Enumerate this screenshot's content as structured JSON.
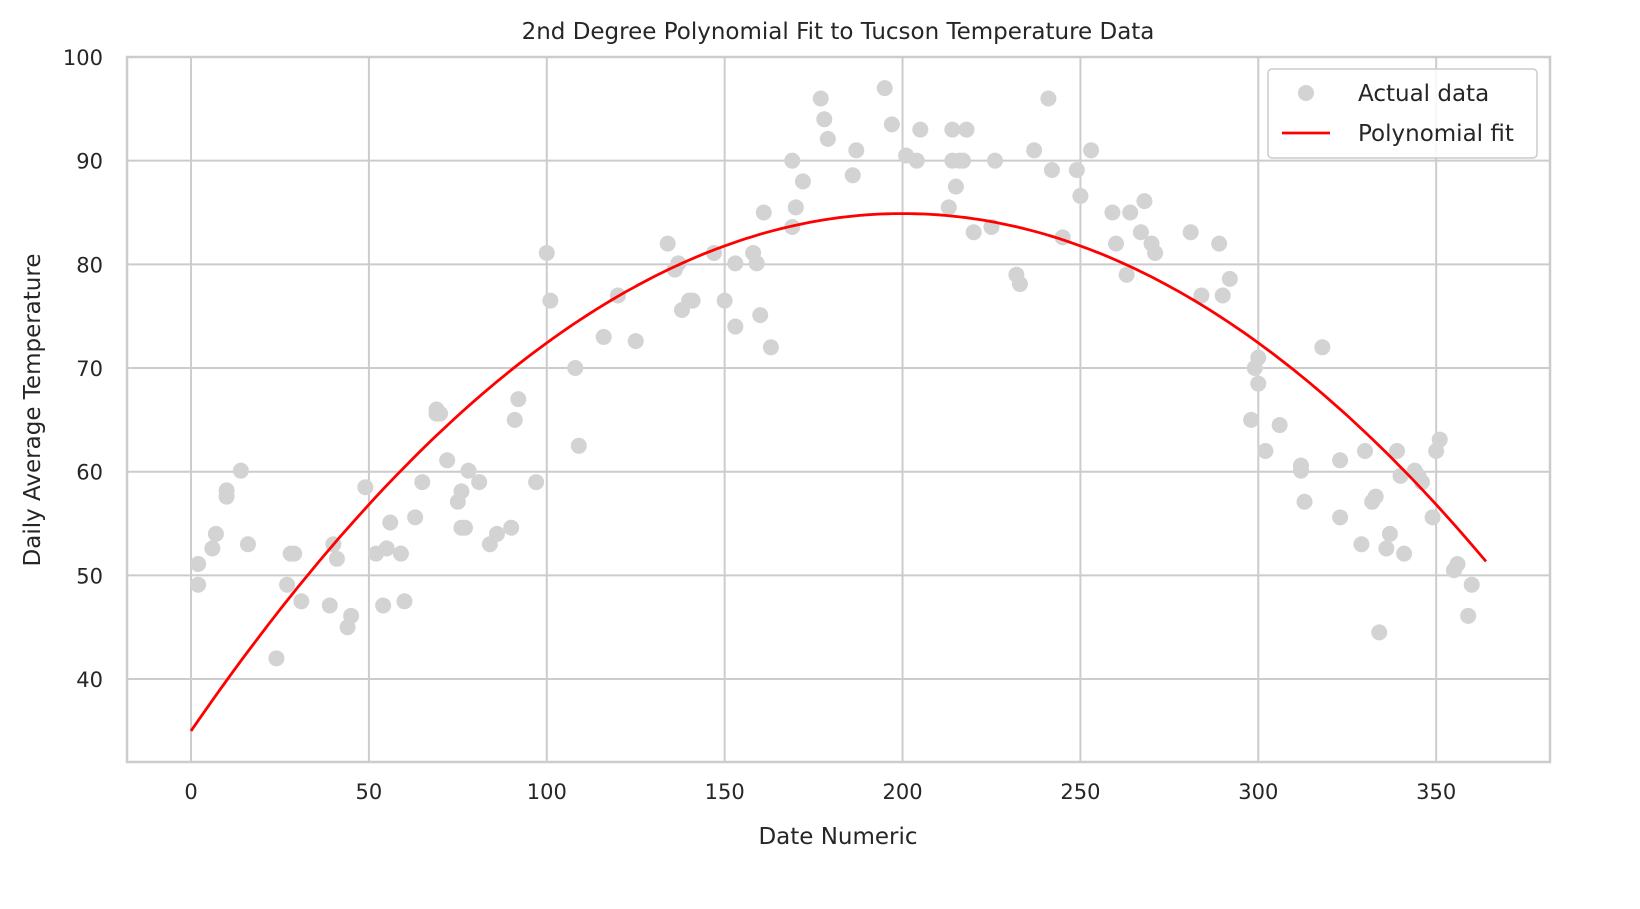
{
  "chart_data": {
    "type": "scatter",
    "title": "2nd Degree Polynomial Fit to Tucson Temperature Data",
    "xlabel": "Date Numeric",
    "ylabel": "Daily Average Temperature",
    "xlim": [
      -18,
      382
    ],
    "ylim": [
      32,
      100
    ],
    "xticks": [
      0,
      50,
      100,
      150,
      200,
      250,
      300,
      350
    ],
    "yticks": [
      40,
      50,
      60,
      70,
      80,
      90,
      100
    ],
    "grid": true,
    "legend": {
      "placement": "top-right",
      "entries": [
        "Actual data",
        "Polynomial fit"
      ]
    },
    "series": [
      {
        "name": "Actual data",
        "kind": "scatter",
        "color": "#d3d3d3",
        "points": [
          [
            2,
            51.1
          ],
          [
            2,
            49.1
          ],
          [
            6,
            52.6
          ],
          [
            7,
            54
          ],
          [
            10,
            58.2
          ],
          [
            10,
            57.6
          ],
          [
            14,
            60.1
          ],
          [
            16,
            53
          ],
          [
            24,
            42
          ],
          [
            27,
            49.1
          ],
          [
            28,
            52.1
          ],
          [
            29,
            52.1
          ],
          [
            31,
            47.5
          ],
          [
            39,
            47.1
          ],
          [
            40,
            53
          ],
          [
            41,
            51.6
          ],
          [
            44,
            45
          ],
          [
            45,
            46.1
          ],
          [
            49,
            58.5
          ],
          [
            52,
            52.1
          ],
          [
            54,
            47.1
          ],
          [
            55,
            52.6
          ],
          [
            56,
            55.1
          ],
          [
            59,
            52.1
          ],
          [
            60,
            47.5
          ],
          [
            63,
            55.6
          ],
          [
            65,
            59
          ],
          [
            69,
            66
          ],
          [
            69,
            65.6
          ],
          [
            70,
            65.6
          ],
          [
            72,
            61.1
          ],
          [
            75,
            57.1
          ],
          [
            76,
            58.1
          ],
          [
            76,
            54.6
          ],
          [
            77,
            54.6
          ],
          [
            78,
            60.1
          ],
          [
            81,
            59
          ],
          [
            84,
            53
          ],
          [
            86,
            54
          ],
          [
            90,
            54.6
          ],
          [
            91,
            65
          ],
          [
            92,
            67
          ],
          [
            97,
            59
          ],
          [
            100,
            81.1
          ],
          [
            101,
            76.5
          ],
          [
            108,
            70
          ],
          [
            109,
            62.5
          ],
          [
            116,
            73
          ],
          [
            120,
            77
          ],
          [
            125,
            72.6
          ],
          [
            134,
            82
          ],
          [
            136,
            79.5
          ],
          [
            137,
            80.1
          ],
          [
            138,
            75.6
          ],
          [
            140,
            76.5
          ],
          [
            141,
            76.5
          ],
          [
            147,
            81.1
          ],
          [
            150,
            76.5
          ],
          [
            153,
            74
          ],
          [
            153,
            80.1
          ],
          [
            158,
            81.1
          ],
          [
            159,
            80.1
          ],
          [
            160,
            75.1
          ],
          [
            161,
            85
          ],
          [
            163,
            72
          ],
          [
            169,
            90
          ],
          [
            169,
            83.6
          ],
          [
            170,
            85.5
          ],
          [
            172,
            88
          ],
          [
            177,
            96
          ],
          [
            178,
            94
          ],
          [
            179,
            92.1
          ],
          [
            186,
            88.6
          ],
          [
            187,
            91
          ],
          [
            195,
            97
          ],
          [
            197,
            93.5
          ],
          [
            201,
            90.5
          ],
          [
            204,
            90
          ],
          [
            205,
            93
          ],
          [
            213,
            85.5
          ],
          [
            214,
            93
          ],
          [
            214,
            90
          ],
          [
            215,
            87.5
          ],
          [
            216,
            90
          ],
          [
            217,
            90
          ],
          [
            218,
            93
          ],
          [
            220,
            83.1
          ],
          [
            225,
            83.6
          ],
          [
            226,
            90
          ],
          [
            232,
            79
          ],
          [
            233,
            78.1
          ],
          [
            237,
            91
          ],
          [
            241,
            96
          ],
          [
            242,
            89.1
          ],
          [
            245,
            82.6
          ],
          [
            249,
            89.1
          ],
          [
            250,
            86.6
          ],
          [
            253,
            91
          ],
          [
            259,
            85
          ],
          [
            260,
            82
          ],
          [
            263,
            79
          ],
          [
            264,
            85
          ],
          [
            267,
            83.1
          ],
          [
            268,
            86.1
          ],
          [
            270,
            82
          ],
          [
            271,
            81.1
          ],
          [
            281,
            83.1
          ],
          [
            284,
            77
          ],
          [
            289,
            82
          ],
          [
            290,
            77
          ],
          [
            292,
            78.6
          ],
          [
            298,
            65
          ],
          [
            299,
            70
          ],
          [
            300,
            68.5
          ],
          [
            300,
            71
          ],
          [
            302,
            62
          ],
          [
            306,
            64.5
          ],
          [
            312,
            60.6
          ],
          [
            312,
            60.1
          ],
          [
            313,
            57.1
          ],
          [
            318,
            72
          ],
          [
            323,
            61.1
          ],
          [
            323,
            55.6
          ],
          [
            329,
            53
          ],
          [
            330,
            62
          ],
          [
            332,
            57.1
          ],
          [
            333,
            57.6
          ],
          [
            334,
            44.5
          ],
          [
            336,
            52.6
          ],
          [
            337,
            54
          ],
          [
            339,
            62
          ],
          [
            340,
            59.6
          ],
          [
            341,
            52.1
          ],
          [
            344,
            60.1
          ],
          [
            345,
            59.6
          ],
          [
            346,
            59
          ],
          [
            349,
            55.6
          ],
          [
            350,
            62
          ],
          [
            351,
            63.1
          ],
          [
            355,
            50.5
          ],
          [
            356,
            51.1
          ],
          [
            359,
            46.1
          ],
          [
            360,
            49.1
          ]
        ]
      },
      {
        "name": "Polynomial fit",
        "kind": "line",
        "color": "#ff0000",
        "coefficients": [
          -0.0012475,
          0.499,
          35.0
        ],
        "x_range": [
          0,
          364
        ]
      }
    ]
  }
}
